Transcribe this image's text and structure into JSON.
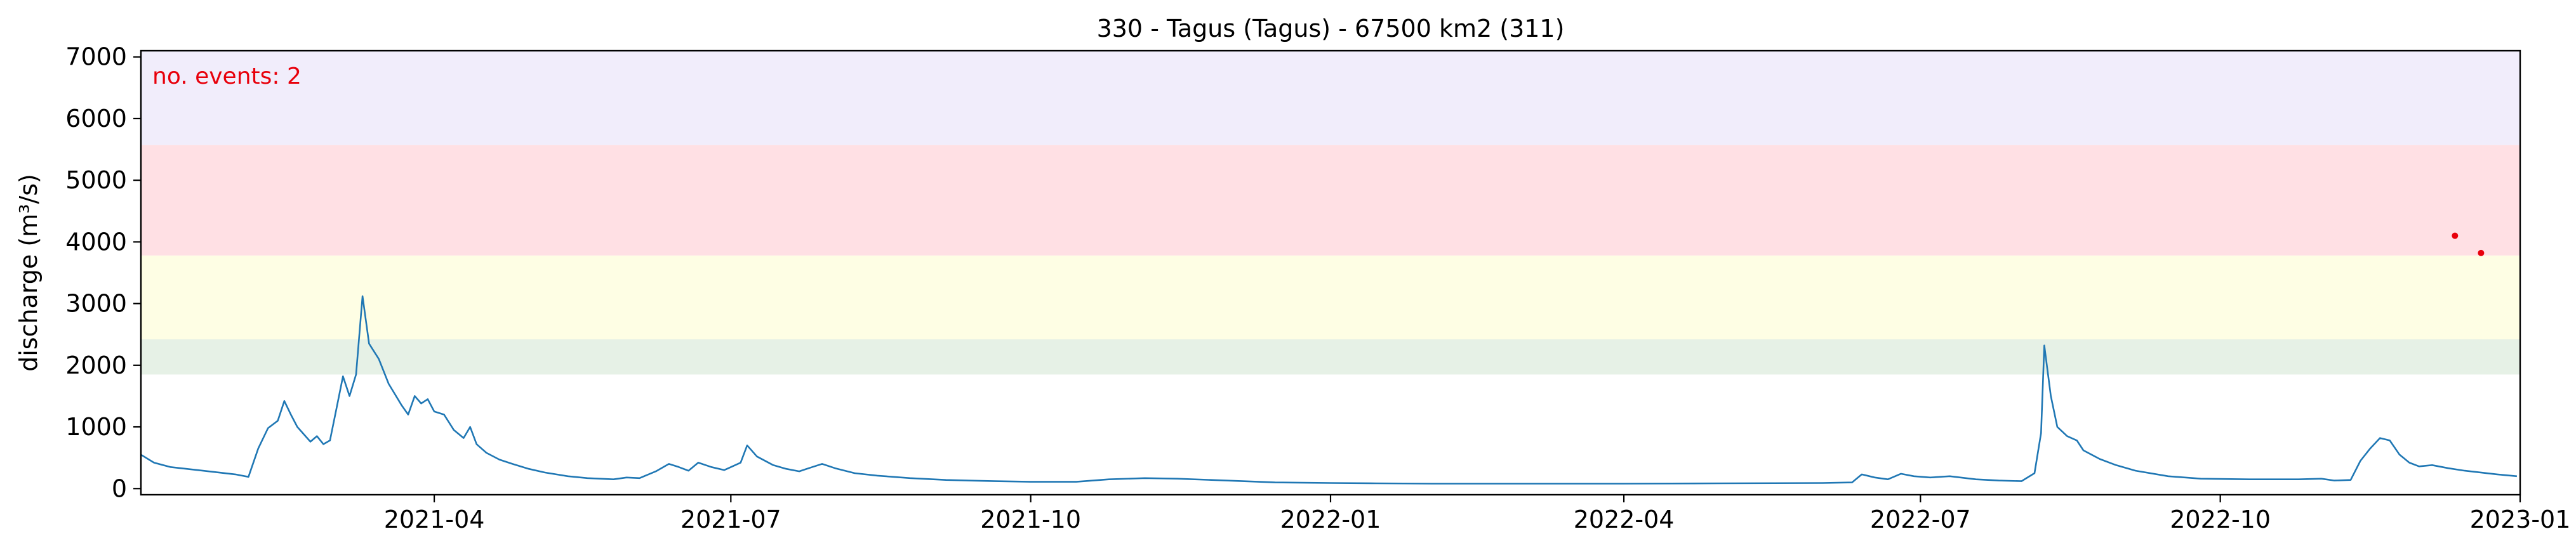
{
  "chart_data": {
    "type": "line",
    "title": "330 - Tagus (Tagus) - 67500 km2 (311)",
    "xlabel": "",
    "ylabel": "discharge (m³/s)",
    "xlim": [
      "2021-01-01",
      "2023-01-01"
    ],
    "ylim": [
      -100,
      7100
    ],
    "x_ticks": [
      {
        "date": "2021-04-01",
        "label": "2021-04"
      },
      {
        "date": "2021-07-01",
        "label": "2021-07"
      },
      {
        "date": "2021-10-01",
        "label": "2021-10"
      },
      {
        "date": "2022-01-01",
        "label": "2022-01"
      },
      {
        "date": "2022-04-01",
        "label": "2022-04"
      },
      {
        "date": "2022-07-01",
        "label": "2022-07"
      },
      {
        "date": "2022-10-01",
        "label": "2022-10"
      },
      {
        "date": "2023-01-01",
        "label": "2023-01"
      }
    ],
    "y_ticks": [
      0,
      1000,
      2000,
      3000,
      4000,
      5000,
      6000,
      7000
    ],
    "grid": false,
    "annotation": {
      "text": "no. events: 2",
      "color": "#e8000b"
    },
    "threshold_bands": [
      {
        "from": 1850,
        "to": 2420,
        "color": "#e6f1e6"
      },
      {
        "from": 2420,
        "to": 3780,
        "color": "#fefee4"
      },
      {
        "from": 3780,
        "to": 5570,
        "color": "#ffe0e4"
      },
      {
        "from": 5570,
        "to": 7100,
        "color": "#f1edfb"
      }
    ],
    "series": [
      {
        "color": "#1f77b4",
        "points": [
          [
            "2021-01-01",
            550
          ],
          [
            "2021-01-05",
            420
          ],
          [
            "2021-01-10",
            350
          ],
          [
            "2021-01-20",
            290
          ],
          [
            "2021-01-30",
            230
          ],
          [
            "2021-02-03",
            190
          ],
          [
            "2021-02-06",
            650
          ],
          [
            "2021-02-09",
            980
          ],
          [
            "2021-02-12",
            1100
          ],
          [
            "2021-02-14",
            1420
          ],
          [
            "2021-02-16",
            1200
          ],
          [
            "2021-02-18",
            1000
          ],
          [
            "2021-02-20",
            880
          ],
          [
            "2021-02-22",
            760
          ],
          [
            "2021-02-24",
            850
          ],
          [
            "2021-02-26",
            720
          ],
          [
            "2021-02-28",
            780
          ],
          [
            "2021-03-02",
            1300
          ],
          [
            "2021-03-04",
            1820
          ],
          [
            "2021-03-06",
            1500
          ],
          [
            "2021-03-08",
            1850
          ],
          [
            "2021-03-10",
            3120
          ],
          [
            "2021-03-12",
            2350
          ],
          [
            "2021-03-15",
            2100
          ],
          [
            "2021-03-18",
            1700
          ],
          [
            "2021-03-22",
            1350
          ],
          [
            "2021-03-24",
            1200
          ],
          [
            "2021-03-26",
            1500
          ],
          [
            "2021-03-28",
            1380
          ],
          [
            "2021-03-30",
            1450
          ],
          [
            "2021-04-01",
            1250
          ],
          [
            "2021-04-04",
            1200
          ],
          [
            "2021-04-07",
            950
          ],
          [
            "2021-04-10",
            820
          ],
          [
            "2021-04-12",
            1000
          ],
          [
            "2021-04-14",
            720
          ],
          [
            "2021-04-17",
            580
          ],
          [
            "2021-04-21",
            470
          ],
          [
            "2021-04-25",
            400
          ],
          [
            "2021-04-30",
            320
          ],
          [
            "2021-05-05",
            260
          ],
          [
            "2021-05-12",
            200
          ],
          [
            "2021-05-18",
            170
          ],
          [
            "2021-05-26",
            150
          ],
          [
            "2021-05-30",
            180
          ],
          [
            "2021-06-03",
            170
          ],
          [
            "2021-06-08",
            280
          ],
          [
            "2021-06-12",
            400
          ],
          [
            "2021-06-15",
            350
          ],
          [
            "2021-06-18",
            290
          ],
          [
            "2021-06-21",
            420
          ],
          [
            "2021-06-25",
            350
          ],
          [
            "2021-06-29",
            300
          ],
          [
            "2021-07-04",
            420
          ],
          [
            "2021-07-06",
            700
          ],
          [
            "2021-07-09",
            520
          ],
          [
            "2021-07-14",
            380
          ],
          [
            "2021-07-18",
            320
          ],
          [
            "2021-07-22",
            280
          ],
          [
            "2021-07-26",
            350
          ],
          [
            "2021-07-29",
            400
          ],
          [
            "2021-08-02",
            330
          ],
          [
            "2021-08-08",
            250
          ],
          [
            "2021-08-15",
            210
          ],
          [
            "2021-08-25",
            170
          ],
          [
            "2021-09-05",
            140
          ],
          [
            "2021-09-20",
            120
          ],
          [
            "2021-10-01",
            110
          ],
          [
            "2021-10-15",
            110
          ],
          [
            "2021-10-25",
            150
          ],
          [
            "2021-11-05",
            170
          ],
          [
            "2021-11-15",
            160
          ],
          [
            "2021-11-30",
            130
          ],
          [
            "2021-12-15",
            100
          ],
          [
            "2022-01-01",
            90
          ],
          [
            "2022-01-15",
            85
          ],
          [
            "2022-02-01",
            80
          ],
          [
            "2022-03-01",
            80
          ],
          [
            "2022-04-01",
            80
          ],
          [
            "2022-05-01",
            85
          ],
          [
            "2022-06-01",
            90
          ],
          [
            "2022-06-10",
            100
          ],
          [
            "2022-06-13",
            230
          ],
          [
            "2022-06-17",
            180
          ],
          [
            "2022-06-21",
            150
          ],
          [
            "2022-06-25",
            240
          ],
          [
            "2022-06-29",
            200
          ],
          [
            "2022-07-04",
            180
          ],
          [
            "2022-07-10",
            200
          ],
          [
            "2022-07-18",
            150
          ],
          [
            "2022-07-25",
            130
          ],
          [
            "2022-08-01",
            120
          ],
          [
            "2022-08-05",
            250
          ],
          [
            "2022-08-07",
            900
          ],
          [
            "2022-08-08",
            2320
          ],
          [
            "2022-08-10",
            1500
          ],
          [
            "2022-08-12",
            1000
          ],
          [
            "2022-08-15",
            850
          ],
          [
            "2022-08-18",
            780
          ],
          [
            "2022-08-20",
            620
          ],
          [
            "2022-08-25",
            480
          ],
          [
            "2022-08-30",
            380
          ],
          [
            "2022-09-05",
            290
          ],
          [
            "2022-09-15",
            200
          ],
          [
            "2022-09-25",
            160
          ],
          [
            "2022-10-10",
            150
          ],
          [
            "2022-10-25",
            150
          ],
          [
            "2022-11-01",
            160
          ],
          [
            "2022-11-05",
            130
          ],
          [
            "2022-11-10",
            140
          ],
          [
            "2022-11-13",
            450
          ],
          [
            "2022-11-16",
            650
          ],
          [
            "2022-11-19",
            820
          ],
          [
            "2022-11-22",
            780
          ],
          [
            "2022-11-25",
            550
          ],
          [
            "2022-11-28",
            420
          ],
          [
            "2022-12-01",
            360
          ],
          [
            "2022-12-05",
            380
          ],
          [
            "2022-12-10",
            330
          ],
          [
            "2022-12-15",
            290
          ],
          [
            "2022-12-25",
            230
          ],
          [
            "2022-12-31",
            200
          ]
        ]
      }
    ],
    "events": [
      {
        "x": "2022-12-12",
        "y": 4100,
        "color": "#e8000b"
      },
      {
        "x": "2022-12-20",
        "y": 3820,
        "color": "#e8000b"
      }
    ]
  }
}
